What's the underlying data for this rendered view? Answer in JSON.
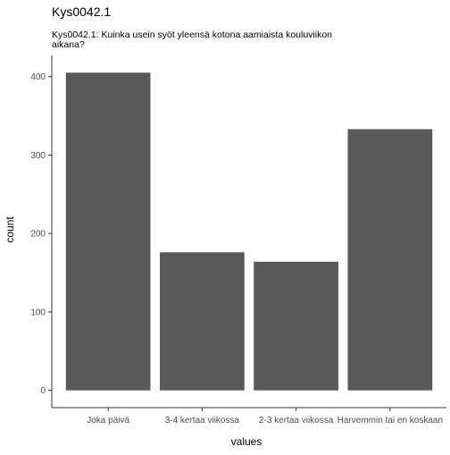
{
  "chart_data": {
    "type": "bar",
    "title": "Kys0042.1",
    "subtitle": "Kys0042.1: Kuinka usein syöt yleensä kotona aamiaista kouluviikon aikana?",
    "subtitle_lines": [
      "Kys0042.1: Kuinka usein syöt yleensä kotona aamiaista kouluviikon",
      "aikana?"
    ],
    "xlabel": "values",
    "ylabel": "count",
    "categories": [
      "Joka päivä",
      "3-4 kertaa viikossa",
      "2-3 kertaa viikossa",
      "Harvemmin tai en koskaan"
    ],
    "values": [
      405,
      176,
      164,
      333
    ],
    "yticks": [
      0,
      100,
      200,
      300,
      400
    ],
    "ylim": [
      -22,
      427
    ],
    "grid": false,
    "legend": "none",
    "bar_color": "#595959",
    "axis_color": "#333333",
    "text_color": "#000000",
    "tick_label_color": "#4d4d4d"
  }
}
